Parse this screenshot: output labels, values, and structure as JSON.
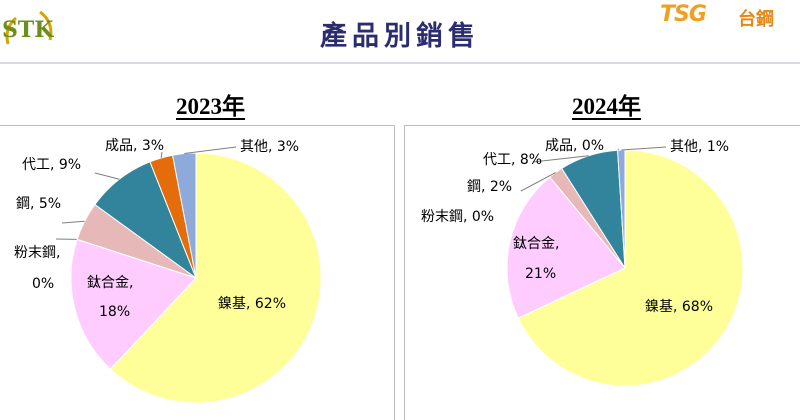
{
  "header": {
    "title": "產品別銷售",
    "logo_left_text": "STK",
    "logo_right_brand": "TSG",
    "logo_right_cn": "台鋼"
  },
  "chart_data": [
    {
      "type": "pie",
      "title": "2023年",
      "slices": [
        {
          "label": "鎳基",
          "value": 62,
          "display": "鎳基, 62%",
          "color": "#ffff99"
        },
        {
          "label": "鈦合金",
          "value": 18,
          "display": "鈦合金, 18%",
          "color": "#ffccff"
        },
        {
          "label": "粉末鋼",
          "value": 0,
          "display": "粉末鋼, 0%",
          "color": "#99cc33"
        },
        {
          "label": "鋼",
          "value": 5,
          "display": "鋼, 5%",
          "color": "#e6b9b8"
        },
        {
          "label": "代工",
          "value": 9,
          "display": "代工, 9%",
          "color": "#31849b"
        },
        {
          "label": "成品",
          "value": 3,
          "display": "成品, 3%",
          "color": "#e46c0a"
        },
        {
          "label": "其他",
          "value": 3,
          "display": "其他, 3%",
          "color": "#8eaadb"
        }
      ]
    },
    {
      "type": "pie",
      "title": "2024年",
      "slices": [
        {
          "label": "鎳基",
          "value": 68,
          "display": "鎳基, 68%",
          "color": "#ffff99"
        },
        {
          "label": "鈦合金",
          "value": 21,
          "display": "鈦合金, 21%",
          "color": "#ffccff"
        },
        {
          "label": "粉末鋼",
          "value": 0,
          "display": "粉末鋼, 0%",
          "color": "#99cc33"
        },
        {
          "label": "鋼",
          "value": 2,
          "display": "鋼, 2%",
          "color": "#e6b9b8"
        },
        {
          "label": "代工",
          "value": 8,
          "display": "代工, 8%",
          "color": "#31849b"
        },
        {
          "label": "成品",
          "value": 0,
          "display": "成品, 0%",
          "color": "#e46c0a"
        },
        {
          "label": "其他",
          "value": 1,
          "display": "其他, 1%",
          "color": "#8eaadb"
        }
      ]
    }
  ]
}
